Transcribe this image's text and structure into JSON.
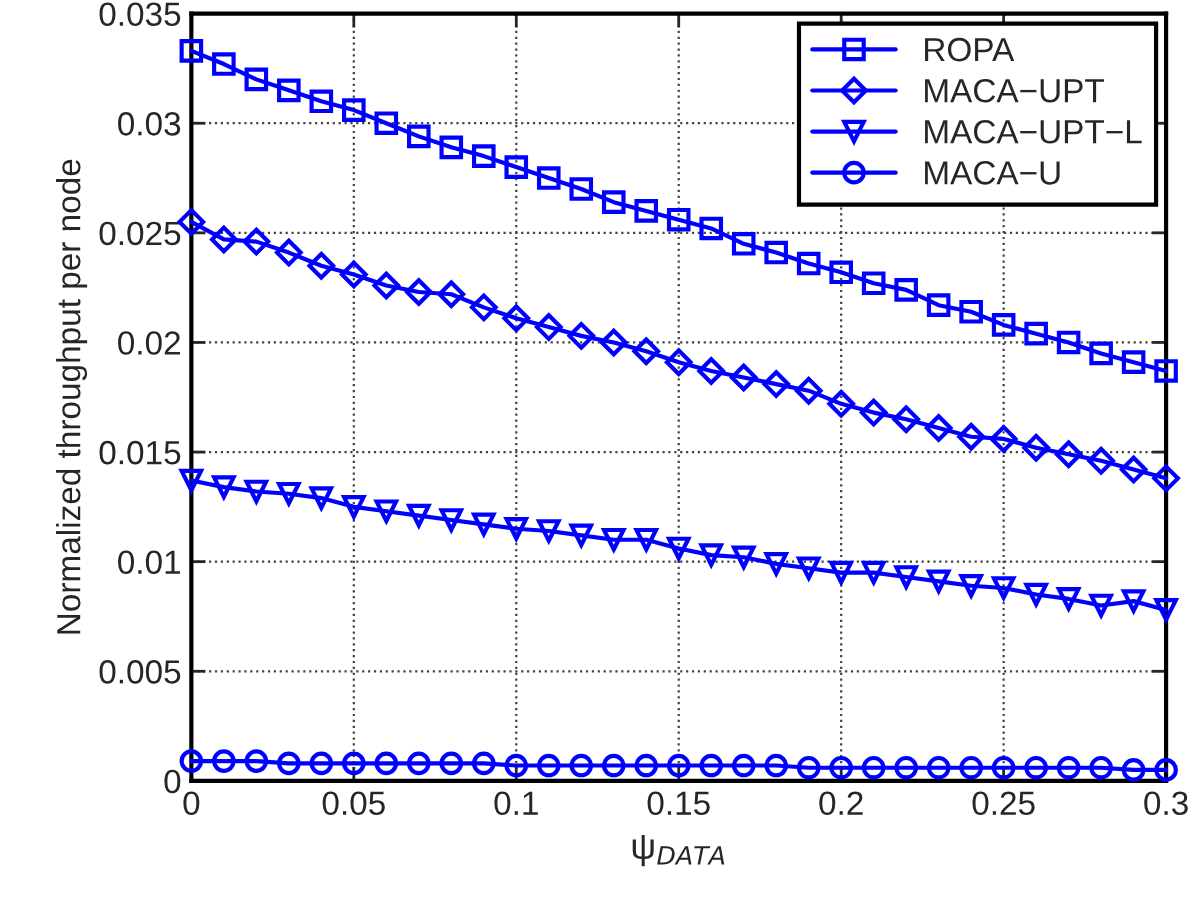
{
  "chart_data": {
    "type": "line",
    "xlabel": "ψ$_{DATA}$",
    "ylabel": "Normalized throughput per node",
    "x": [
      0,
      0.01,
      0.02,
      0.03,
      0.04,
      0.05,
      0.06,
      0.07,
      0.08,
      0.09,
      0.1,
      0.11,
      0.12,
      0.13,
      0.14,
      0.15,
      0.16,
      0.17,
      0.18,
      0.19,
      0.2,
      0.21,
      0.22,
      0.23,
      0.24,
      0.25,
      0.26,
      0.27,
      0.28,
      0.29,
      0.3
    ],
    "series": [
      {
        "name": "ROPA",
        "color": "#0000ff",
        "marker": "square",
        "values": [
          0.0333,
          0.0327,
          0.032,
          0.0315,
          0.031,
          0.0306,
          0.03,
          0.0294,
          0.0289,
          0.0285,
          0.028,
          0.0275,
          0.027,
          0.0264,
          0.026,
          0.0256,
          0.0252,
          0.0245,
          0.0241,
          0.0236,
          0.0232,
          0.0227,
          0.0224,
          0.0217,
          0.0214,
          0.0208,
          0.0204,
          0.02,
          0.0195,
          0.0191,
          0.0187
        ]
      },
      {
        "name": "MACA−UPT",
        "color": "#0000ff",
        "marker": "diamond",
        "values": [
          0.0255,
          0.0247,
          0.0246,
          0.0241,
          0.0235,
          0.0231,
          0.0226,
          0.0223,
          0.0222,
          0.0216,
          0.0211,
          0.0207,
          0.0203,
          0.02,
          0.0196,
          0.0191,
          0.0187,
          0.0184,
          0.0181,
          0.0178,
          0.0172,
          0.0168,
          0.0165,
          0.0161,
          0.0157,
          0.0156,
          0.0152,
          0.0149,
          0.0146,
          0.0142,
          0.0138
        ]
      },
      {
        "name": "MACA−UPT−L",
        "color": "#0000ff",
        "marker": "triangle",
        "values": [
          0.0137,
          0.0134,
          0.0132,
          0.0131,
          0.0129,
          0.0125,
          0.0123,
          0.0121,
          0.0119,
          0.0117,
          0.0115,
          0.0114,
          0.0112,
          0.011,
          0.011,
          0.0106,
          0.0103,
          0.0102,
          0.0099,
          0.0097,
          0.0095,
          0.0095,
          0.0093,
          0.0091,
          0.0089,
          0.0088,
          0.0085,
          0.0083,
          0.008,
          0.0082,
          0.0078
        ]
      },
      {
        "name": "MACA−U",
        "color": "#0000ff",
        "marker": "circle",
        "values": [
          0.0009,
          0.0009,
          0.0009,
          0.0008,
          0.0008,
          0.0008,
          0.0008,
          0.0008,
          0.0008,
          0.0008,
          0.0007,
          0.0007,
          0.0007,
          0.0007,
          0.0007,
          0.0007,
          0.0007,
          0.0007,
          0.0007,
          0.0006,
          0.0006,
          0.0006,
          0.0006,
          0.0006,
          0.0006,
          0.0006,
          0.0006,
          0.0006,
          0.0006,
          0.0005,
          0.0005
        ]
      }
    ],
    "xlim": [
      0,
      0.3
    ],
    "xticks": [
      0,
      0.05,
      0.1,
      0.15,
      0.2,
      0.25,
      0.3
    ],
    "ylim": [
      0,
      0.035
    ],
    "yticks": [
      0,
      0.005,
      0.01,
      0.015,
      0.02,
      0.025,
      0.03,
      0.035
    ],
    "grid": true,
    "legend": "top right",
    "line_style": "solid"
  }
}
